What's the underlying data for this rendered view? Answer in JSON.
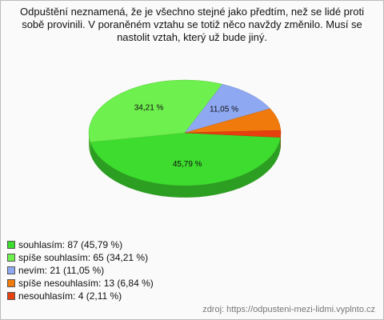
{
  "chart_data": {
    "type": "pie",
    "title": "Odpuštění neznamená, že je všechno stejné jako předtím, než se lidé proti sobě provinili. V poraněném vztahu se totiž něco navždy změnilo. Musí se nastolit vztah, který už bude jiný.",
    "categories": [
      "souhlasím: 87 (45,79 %)",
      "spíše souhlasím: 65 (34,21 %)",
      "nevím: 21 (11,05 %)",
      "spíše nesouhlasím: 13 (6,84 %)",
      "nesouhlasím: 4 (2,11 %)"
    ],
    "values": [
      45.79,
      34.21,
      11.05,
      6.84,
      2.11
    ],
    "value_labels": [
      "45,79 %",
      "34,21 %",
      "11,05 %",
      null,
      null
    ],
    "colors": [
      "#3ddc2e",
      "#6ef04e",
      "#8ea8f2",
      "#f07a0c",
      "#e6400f"
    ],
    "source": "zdroj: https://odpusteni-mezi-lidmi.vyplnto.cz"
  }
}
